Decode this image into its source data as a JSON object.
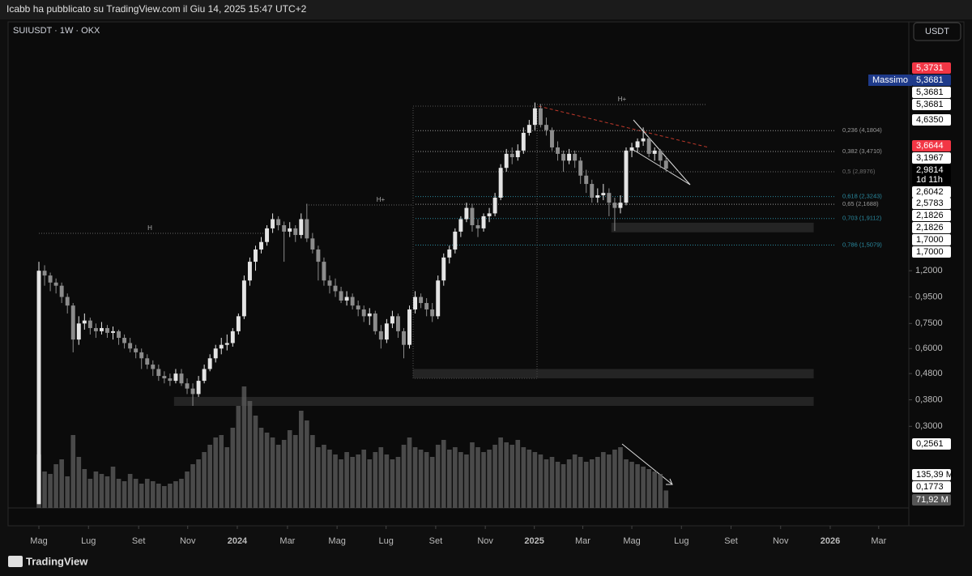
{
  "header": "Icabb ha pubblicato su TradingView.com il Giu 14, 2025 15:47 UTC+2",
  "footer": "TradingView",
  "chart_data": {
    "type": "candlestick",
    "title": "SUIUSDT · 1W · OKX",
    "currency": "USDT",
    "log_scale": true,
    "up_color": "#e4e4e4",
    "down_color": "#8c8c8c",
    "volume_color": "#5a5a5a",
    "xlim": [
      -0.57,
      152.3
    ],
    "ylim": [
      0.145,
      10.78
    ],
    "vlim": [
      0,
      1990
    ],
    "xticks": [
      {
        "value": 0,
        "label": "Mag"
      },
      {
        "value": 8.7,
        "label": "Lug"
      },
      {
        "value": 17.5,
        "label": "Set"
      },
      {
        "value": 26.1,
        "label": "Nov"
      },
      {
        "value": 34.8,
        "label": "2024"
      },
      {
        "value": 43.6,
        "label": "Mar"
      },
      {
        "value": 52.3,
        "label": "Mag"
      },
      {
        "value": 60.9,
        "label": "Lug"
      },
      {
        "value": 69.6,
        "label": "Set"
      },
      {
        "value": 78.3,
        "label": "Nov"
      },
      {
        "value": 86.9,
        "label": "2025"
      },
      {
        "value": 95.4,
        "label": "Mar"
      },
      {
        "value": 104,
        "label": "Mag"
      },
      {
        "value": 112.7,
        "label": "Lug"
      },
      {
        "value": 121.4,
        "label": "Set"
      },
      {
        "value": 130.1,
        "label": "Nov"
      },
      {
        "value": 138.8,
        "label": "2026"
      },
      {
        "value": 147.3,
        "label": "Mar"
      }
    ],
    "yticks": [
      {
        "value": 1.2,
        "label": "1,2000"
      },
      {
        "value": 0.95,
        "label": "0,9500"
      },
      {
        "value": 0.75,
        "label": "0,7500"
      },
      {
        "value": 0.6,
        "label": "0,6000"
      },
      {
        "value": 0.48,
        "label": "0,4800"
      },
      {
        "value": 0.38,
        "label": "0,3800"
      },
      {
        "value": 0.3,
        "label": "0,3000"
      }
    ],
    "price_labels": [
      {
        "value": 5.3731,
        "label": "5,3731",
        "color": "#f23645"
      },
      {
        "value": 5.3681,
        "label": "5,3681",
        "color": "#1e3a8a",
        "tag": "Massimo"
      },
      {
        "value": 5.3681,
        "label": "5,3681",
        "color": "#ffffff"
      },
      {
        "value": 5.3681,
        "label": "5,3681",
        "color": "#ffffff"
      },
      {
        "value": 4.635,
        "label": "4,6350",
        "color": "#ffffff"
      },
      {
        "value": 3.6644,
        "label": "3,6644",
        "color": "#f23645"
      },
      {
        "value": 3.1967,
        "label": "3,1967",
        "color": "#ffffff"
      },
      {
        "value": 2.9814,
        "label": "2,9814",
        "color": "#000000",
        "countdown": "1d 11h"
      },
      {
        "value": 2.6042,
        "label": "2,6042",
        "color": "#ffffff"
      },
      {
        "value": 2.5783,
        "label": "2,5783",
        "color": "#ffffff"
      },
      {
        "value": 2.1826,
        "label": "2,1826",
        "color": "#ffffff"
      },
      {
        "value": 2.1826,
        "label": "2,1826",
        "color": "#ffffff"
      },
      {
        "value": 1.7,
        "label": "1,7000",
        "color": "#ffffff"
      },
      {
        "value": 1.7,
        "label": "1,7000",
        "color": "#ffffff"
      },
      {
        "value": 0.2561,
        "label": "0,2561",
        "color": "#ffffff"
      },
      {
        "value": 135.39,
        "label": "135,39 M",
        "color": "#ffffff"
      },
      {
        "value": 0.1773,
        "label": "0,1773",
        "color": "#ffffff"
      },
      {
        "value": 71.92,
        "label": "71,92 M",
        "color": "#555555"
      }
    ],
    "fib_levels": [
      {
        "value": 4.1804,
        "label": "0,236 (4,1804)",
        "color": "#9a9a9a"
      },
      {
        "value": 3.471,
        "label": "0,382 (3,4710)",
        "color": "#9a9a9a"
      },
      {
        "value": 2.8976,
        "label": "0,5 (2,8976)",
        "color": "#6a6a6a"
      },
      {
        "value": 2.3243,
        "label": "0,618 (2,3243)",
        "color": "#2a8aa0"
      },
      {
        "value": 2.1688,
        "label": "0,65 (2,1688)",
        "color": "#9a9a9a"
      },
      {
        "value": 1.9112,
        "label": "0,703 (1,9112)",
        "color": "#2a8aa0"
      },
      {
        "value": 1.5079,
        "label": "0,786 (1,5079)",
        "color": "#2a8aa0"
      }
    ],
    "zones": [
      {
        "x": [
          100.4,
          135.9
        ],
        "y": [
          1.69,
          1.84
        ]
      },
      {
        "x": [
          65.6,
          135.9
        ],
        "y": [
          0.46,
          0.5
        ]
      },
      {
        "x": [
          23.7,
          135.9
        ],
        "y": [
          0.36,
          0.39
        ]
      }
    ],
    "annotations": [
      "H",
      "H+",
      "H+"
    ],
    "candles": [
      [
        0.15,
        1.3,
        0.15,
        1.2
      ],
      [
        1.2,
        1.26,
        1.05,
        1.15
      ],
      [
        1.15,
        1.18,
        1.0,
        1.08
      ],
      [
        1.08,
        1.12,
        0.98,
        1.05
      ],
      [
        1.05,
        1.08,
        0.9,
        0.95
      ],
      [
        0.95,
        0.98,
        0.82,
        0.88
      ],
      [
        0.88,
        0.9,
        0.58,
        0.65
      ],
      [
        0.65,
        0.8,
        0.62,
        0.75
      ],
      [
        0.75,
        0.82,
        0.71,
        0.77
      ],
      [
        0.77,
        0.79,
        0.68,
        0.72
      ],
      [
        0.72,
        0.75,
        0.66,
        0.7
      ],
      [
        0.7,
        0.76,
        0.68,
        0.72
      ],
      [
        0.72,
        0.74,
        0.66,
        0.69
      ],
      [
        0.69,
        0.73,
        0.65,
        0.7
      ],
      [
        0.7,
        0.71,
        0.62,
        0.66
      ],
      [
        0.66,
        0.68,
        0.6,
        0.63
      ],
      [
        0.63,
        0.66,
        0.58,
        0.6
      ],
      [
        0.6,
        0.62,
        0.55,
        0.58
      ],
      [
        0.58,
        0.6,
        0.5,
        0.55
      ],
      [
        0.55,
        0.57,
        0.5,
        0.52
      ],
      [
        0.52,
        0.54,
        0.47,
        0.5
      ],
      [
        0.5,
        0.52,
        0.45,
        0.47
      ],
      [
        0.47,
        0.49,
        0.44,
        0.46
      ],
      [
        0.46,
        0.48,
        0.43,
        0.45
      ],
      [
        0.45,
        0.5,
        0.44,
        0.48
      ],
      [
        0.48,
        0.5,
        0.43,
        0.44
      ],
      [
        0.44,
        0.46,
        0.4,
        0.42
      ],
      [
        0.42,
        0.44,
        0.36,
        0.4
      ],
      [
        0.4,
        0.47,
        0.39,
        0.45
      ],
      [
        0.45,
        0.52,
        0.44,
        0.5
      ],
      [
        0.5,
        0.57,
        0.49,
        0.55
      ],
      [
        0.55,
        0.62,
        0.53,
        0.6
      ],
      [
        0.6,
        0.66,
        0.57,
        0.62
      ],
      [
        0.62,
        0.68,
        0.59,
        0.63
      ],
      [
        0.63,
        0.72,
        0.61,
        0.7
      ],
      [
        0.7,
        0.82,
        0.68,
        0.8
      ],
      [
        0.8,
        1.15,
        0.78,
        1.1
      ],
      [
        1.1,
        1.35,
        1.05,
        1.3
      ],
      [
        1.3,
        1.5,
        1.2,
        1.45
      ],
      [
        1.45,
        1.62,
        1.4,
        1.55
      ],
      [
        1.55,
        1.8,
        1.5,
        1.75
      ],
      [
        1.75,
        2.0,
        1.68,
        1.9
      ],
      [
        1.9,
        1.95,
        1.72,
        1.8
      ],
      [
        1.8,
        1.86,
        1.3,
        1.7
      ],
      [
        1.7,
        1.85,
        1.62,
        1.75
      ],
      [
        1.75,
        1.8,
        1.55,
        1.65
      ],
      [
        1.65,
        2.0,
        1.6,
        1.9
      ],
      [
        1.9,
        2.18,
        1.55,
        1.6
      ],
      [
        1.6,
        1.68,
        1.4,
        1.45
      ],
      [
        1.45,
        1.5,
        1.1,
        1.3
      ],
      [
        1.3,
        1.35,
        1.05,
        1.1
      ],
      [
        1.1,
        1.15,
        0.98,
        1.05
      ],
      [
        1.05,
        1.12,
        0.95,
        1.0
      ],
      [
        1.0,
        1.04,
        0.9,
        0.92
      ],
      [
        0.92,
        1.0,
        0.88,
        0.95
      ],
      [
        0.95,
        0.98,
        0.85,
        0.88
      ],
      [
        0.88,
        0.92,
        0.8,
        0.85
      ],
      [
        0.85,
        0.88,
        0.76,
        0.8
      ],
      [
        0.8,
        0.86,
        0.74,
        0.82
      ],
      [
        0.82,
        0.84,
        0.68,
        0.7
      ],
      [
        0.7,
        0.74,
        0.6,
        0.65
      ],
      [
        0.65,
        0.78,
        0.63,
        0.75
      ],
      [
        0.75,
        0.84,
        0.72,
        0.8
      ],
      [
        0.8,
        0.82,
        0.66,
        0.7
      ],
      [
        0.7,
        0.72,
        0.55,
        0.62
      ],
      [
        0.62,
        0.88,
        0.6,
        0.85
      ],
      [
        0.85,
        1.0,
        0.82,
        0.95
      ],
      [
        0.95,
        0.98,
        0.86,
        0.9
      ],
      [
        0.9,
        0.94,
        0.8,
        0.85
      ],
      [
        0.85,
        0.9,
        0.76,
        0.8
      ],
      [
        0.8,
        1.15,
        0.78,
        1.1
      ],
      [
        1.1,
        1.4,
        1.05,
        1.35
      ],
      [
        1.35,
        1.5,
        1.28,
        1.45
      ],
      [
        1.45,
        1.75,
        1.4,
        1.7
      ],
      [
        1.7,
        1.95,
        1.62,
        1.9
      ],
      [
        1.9,
        2.2,
        1.85,
        2.1
      ],
      [
        2.1,
        2.18,
        1.7,
        1.8
      ],
      [
        1.8,
        1.9,
        1.62,
        1.75
      ],
      [
        1.75,
        2.0,
        1.7,
        1.95
      ],
      [
        1.95,
        2.1,
        1.85,
        2.0
      ],
      [
        2.0,
        2.4,
        1.95,
        2.3
      ],
      [
        2.3,
        3.1,
        2.25,
        3.0
      ],
      [
        3.0,
        3.55,
        2.9,
        3.4
      ],
      [
        3.4,
        3.6,
        3.1,
        3.3
      ],
      [
        3.3,
        3.7,
        3.2,
        3.5
      ],
      [
        3.5,
        4.3,
        3.4,
        4.1
      ],
      [
        4.1,
        4.6,
        4.0,
        4.4
      ],
      [
        4.4,
        5.37,
        4.2,
        5.1
      ],
      [
        5.1,
        5.3,
        4.3,
        4.4
      ],
      [
        4.4,
        4.7,
        4.0,
        4.2
      ],
      [
        4.2,
        4.3,
        3.5,
        3.6
      ],
      [
        3.6,
        3.8,
        3.2,
        3.4
      ],
      [
        3.4,
        3.5,
        2.9,
        3.2
      ],
      [
        3.2,
        3.55,
        3.1,
        3.4
      ],
      [
        3.4,
        3.5,
        3.0,
        3.2
      ],
      [
        3.2,
        3.3,
        2.6,
        2.8
      ],
      [
        2.8,
        2.95,
        2.4,
        2.6
      ],
      [
        2.6,
        2.7,
        2.2,
        2.3
      ],
      [
        2.3,
        2.5,
        2.2,
        2.35
      ],
      [
        2.35,
        2.6,
        2.25,
        2.4
      ],
      [
        2.4,
        2.5,
        1.95,
        2.2
      ],
      [
        2.2,
        2.3,
        1.71,
        2.1
      ],
      [
        2.1,
        2.35,
        2.0,
        2.2
      ],
      [
        2.2,
        3.6,
        2.15,
        3.5
      ],
      [
        3.5,
        3.75,
        3.3,
        3.6
      ],
      [
        3.6,
        3.9,
        3.45,
        3.8
      ],
      [
        3.8,
        4.3,
        3.65,
        3.9
      ],
      [
        3.9,
        3.95,
        3.3,
        3.4
      ],
      [
        3.4,
        3.6,
        3.2,
        3.5
      ],
      [
        3.5,
        3.55,
        3.0,
        3.2
      ],
      [
        3.2,
        3.3,
        2.9,
        2.98
      ]
    ],
    "volume": [
      220,
      150,
      140,
      180,
      200,
      130,
      300,
      210,
      160,
      120,
      150,
      140,
      130,
      170,
      120,
      110,
      140,
      120,
      100,
      120,
      110,
      100,
      90,
      100,
      110,
      120,
      150,
      180,
      200,
      230,
      260,
      290,
      300,
      250,
      330,
      420,
      500,
      440,
      380,
      330,
      310,
      290,
      260,
      280,
      320,
      300,
      400,
      360,
      300,
      250,
      260,
      240,
      220,
      200,
      230,
      210,
      220,
      240,
      200,
      230,
      250,
      220,
      200,
      210,
      260,
      290,
      250,
      240,
      230,
      210,
      260,
      280,
      240,
      250,
      230,
      220,
      270,
      250,
      230,
      240,
      260,
      290,
      270,
      260,
      280,
      250,
      240,
      230,
      220,
      200,
      210,
      190,
      180,
      200,
      220,
      210,
      190,
      200,
      210,
      230,
      220,
      240,
      250,
      200,
      190,
      180,
      170,
      160,
      150,
      140,
      71.92
    ]
  }
}
